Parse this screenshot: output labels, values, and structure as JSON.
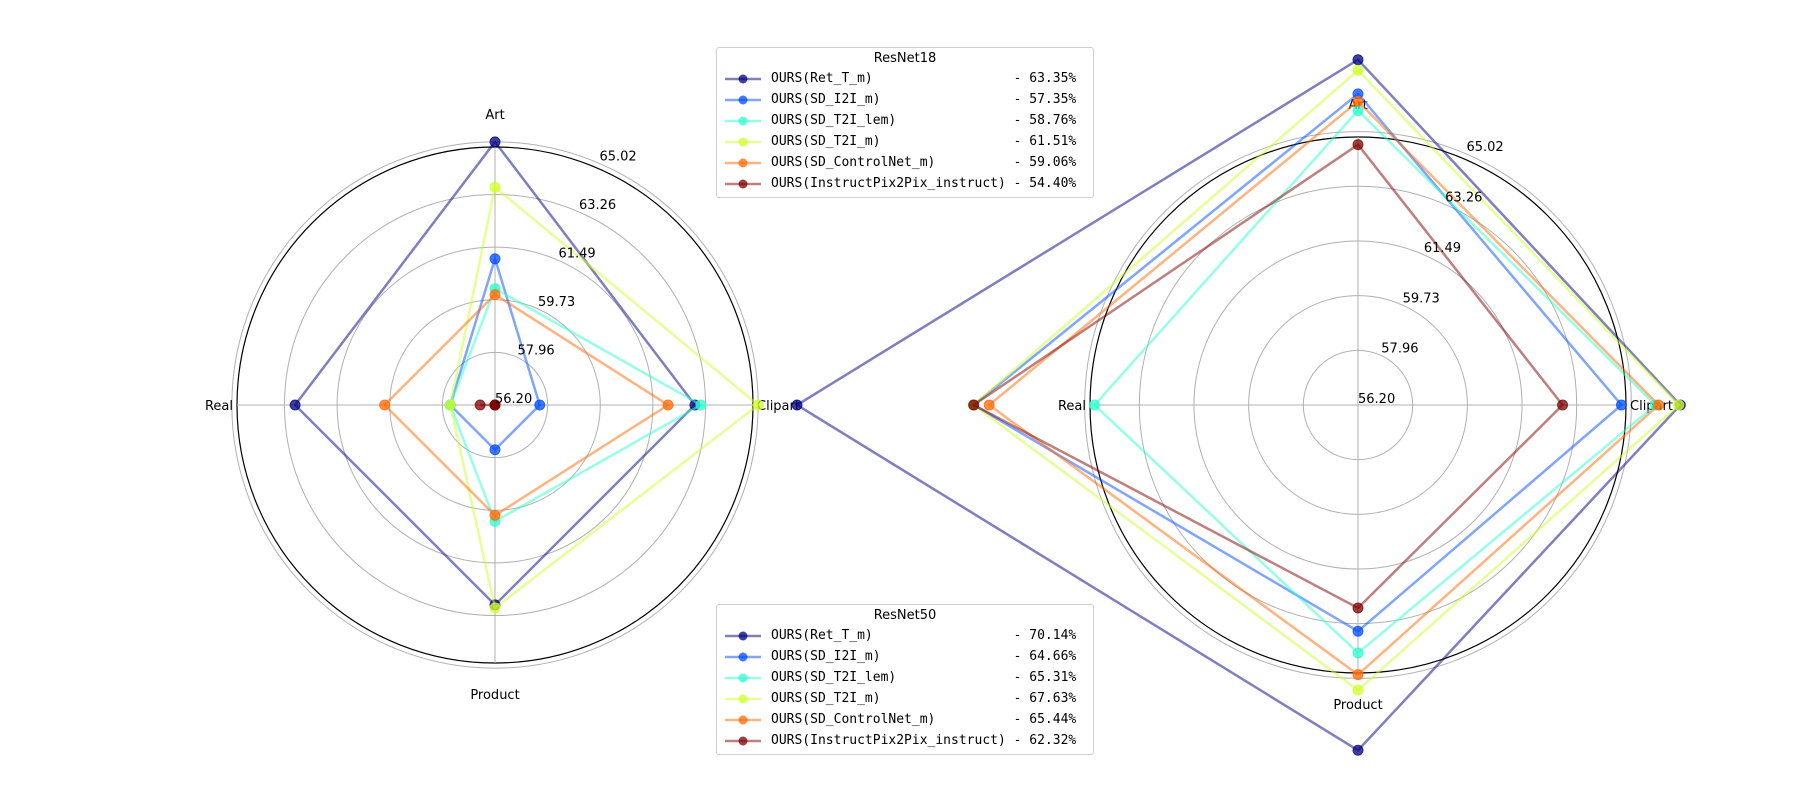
{
  "chart_data": [
    {
      "type": "radar",
      "legend_title": "ResNet18",
      "axes": [
        "Art",
        "Clipart",
        "Product",
        "Real"
      ],
      "radial_tick_labels": [
        "56.20",
        "57.96",
        "59.73",
        "61.49",
        "63.26",
        "65.02"
      ],
      "radial_range": [
        56.2,
        65.02
      ],
      "grid": true,
      "series": [
        {
          "name": "OURS(Ret_T_m)",
          "summary": "63.35%",
          "color": "#00007f",
          "values": [
            65.02,
            62.9,
            62.9,
            62.9
          ]
        },
        {
          "name": "OURS(SD_I2I_m)",
          "summary": "57.35%",
          "color": "#004cff",
          "values": [
            61.1,
            57.7,
            57.7,
            57.7
          ]
        },
        {
          "name": "OURS(SD_T2I_lem)",
          "summary": "58.76%",
          "color": "#29ffce",
          "values": [
            60.1,
            63.1,
            60.1,
            57.7
          ]
        },
        {
          "name": "OURS(SD_T2I_m)",
          "summary": "61.51%",
          "color": "#ceff29",
          "values": [
            63.5,
            65.02,
            63.0,
            57.7
          ]
        },
        {
          "name": "OURS(SD_ControlNet_m)",
          "summary": "59.06%",
          "color": "#ff6800",
          "values": [
            59.9,
            62.0,
            59.9,
            59.9
          ]
        },
        {
          "name": "OURS(InstructPix2Pix_instruct)",
          "summary": "54.40%",
          "color": "#7f0000",
          "values": [
            56.2,
            56.2,
            56.2,
            56.7
          ]
        }
      ]
    },
    {
      "type": "radar",
      "legend_title": "ResNet50",
      "axes": [
        "Art",
        "Clipart",
        "Product",
        "Real"
      ],
      "radial_tick_labels": [
        "56.20",
        "57.96",
        "59.73",
        "61.49",
        "63.26",
        "65.02"
      ],
      "radial_range": [
        56.2,
        65.02
      ],
      "grid": true,
      "series": [
        {
          "name": "OURS(Ret_T_m)",
          "summary": "70.14%",
          "color": "#00007f",
          "values": [
            67.34,
            66.6,
            67.34,
            74.3
          ]
        },
        {
          "name": "OURS(SD_I2I_m)",
          "summary": "64.66%",
          "color": "#004cff",
          "values": [
            66.24,
            64.7,
            63.5,
            68.6
          ]
        },
        {
          "name": "OURS(SD_T2I_lem)",
          "summary": "65.31%",
          "color": "#29ffce",
          "values": [
            65.7,
            65.8,
            64.2,
            64.7
          ]
        },
        {
          "name": "OURS(SD_T2I_m)",
          "summary": "67.63%",
          "color": "#ceff29",
          "values": [
            67.0,
            66.55,
            65.4,
            68.6
          ]
        },
        {
          "name": "OURS(SD_ControlNet_m)",
          "summary": "65.44%",
          "color": "#ff6800",
          "values": [
            66.0,
            65.9,
            64.9,
            68.1
          ]
        },
        {
          "name": "OURS(InstructPix2Pix_instruct)",
          "summary": "62.32%",
          "color": "#7f0000",
          "values": [
            64.6,
            62.8,
            62.75,
            68.6
          ]
        }
      ]
    }
  ]
}
